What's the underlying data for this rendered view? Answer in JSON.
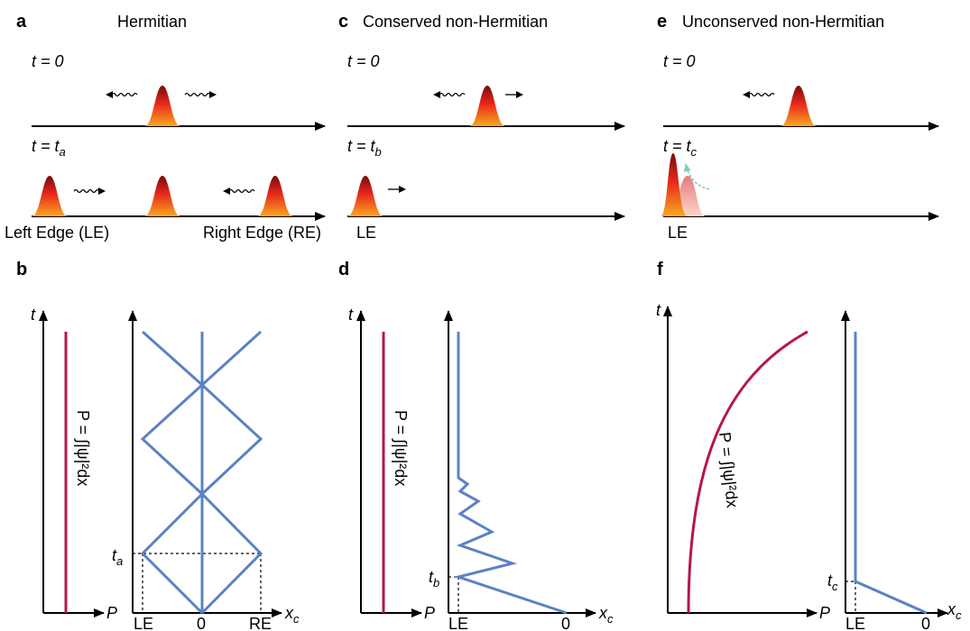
{
  "a": {
    "label": "a",
    "title": "Hermitian",
    "t0": "t = 0",
    "t1": {
      "text": "t = t",
      "sub": "a"
    },
    "left_edge": "Left Edge (LE)",
    "right_edge": "Right Edge (RE)"
  },
  "c": {
    "label": "c",
    "title": "Conserved non-Hermitian",
    "t0": "t = 0",
    "t1": {
      "text": "t = t",
      "sub": "b"
    },
    "edge": "LE"
  },
  "e": {
    "label": "e",
    "title": "Unconserved non-Hermitian",
    "t0": "t = 0",
    "t1": {
      "text": "t = t",
      "sub": "c"
    },
    "edge": "LE"
  },
  "b": {
    "label": "b",
    "t_axis": "t",
    "p_axis": "P",
    "formula": "P = ∫|ψ|²dx",
    "time": {
      "text": "t",
      "sub": "a"
    },
    "x_axis": {
      "text": "x",
      "sub": "c"
    },
    "x_ticks": [
      "LE",
      "0",
      "RE"
    ]
  },
  "d": {
    "label": "d",
    "t_axis": "t",
    "p_axis": "P",
    "formula": "P = ∫|ψ|²dx",
    "time": {
      "text": "t",
      "sub": "b"
    },
    "x_axis": {
      "text": "x",
      "sub": "c"
    },
    "x_ticks": [
      "LE",
      "0"
    ]
  },
  "f": {
    "label": "f",
    "t_axis": "t",
    "p_axis": "P",
    "formula": "P = ∫|ψ|²dx",
    "time": {
      "text": "t",
      "sub": "c"
    },
    "x_axis": {
      "text": "x",
      "sub": "c"
    },
    "x_ticks": [
      "LE",
      "0"
    ]
  }
}
